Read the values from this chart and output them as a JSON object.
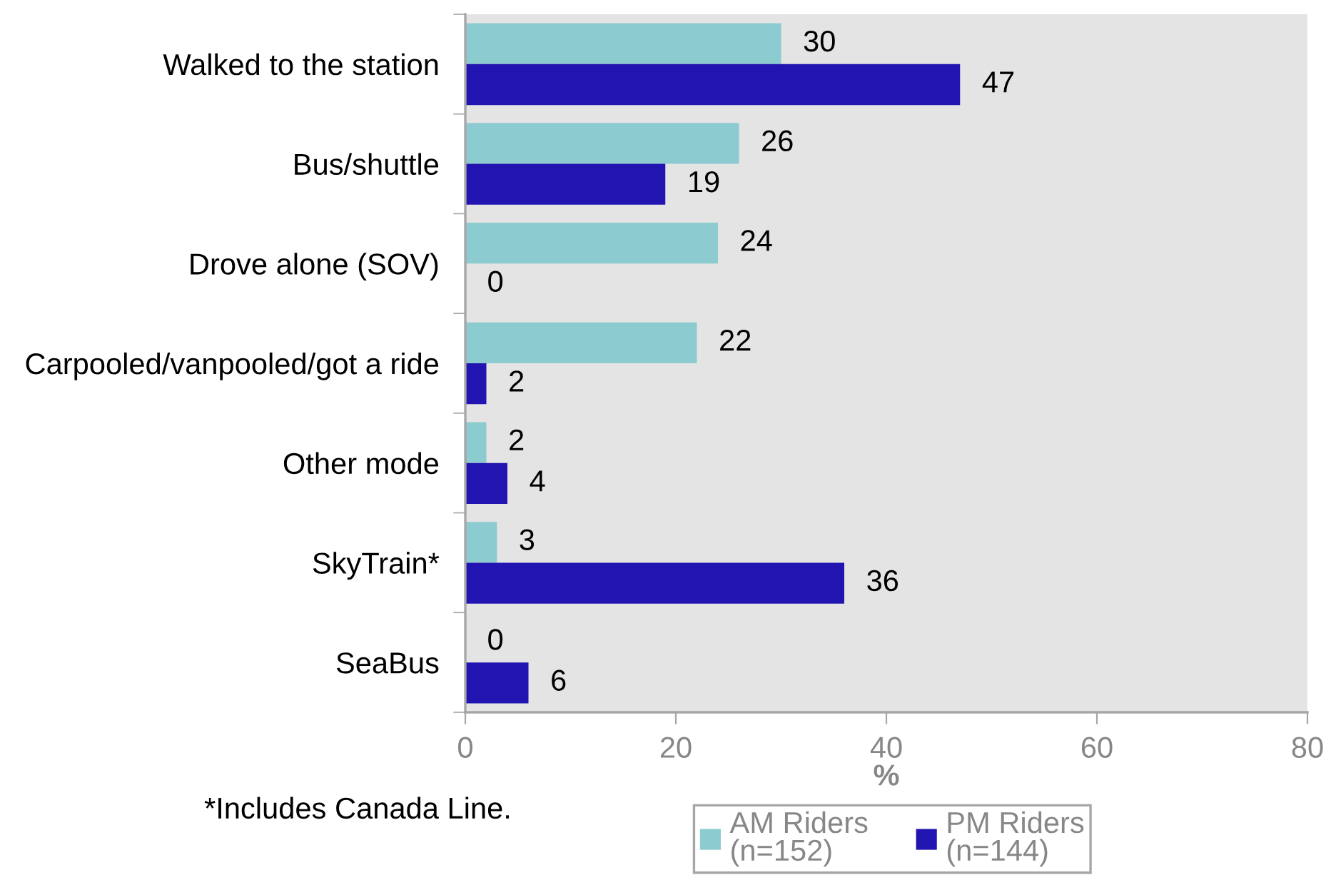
{
  "chart_data": {
    "type": "bar",
    "orientation": "horizontal",
    "categories": [
      "Walked to the station",
      "Bus/shuttle",
      "Drove alone (SOV)",
      "Carpooled/vanpooled/got a ride",
      "Other mode",
      "SkyTrain*",
      "SeaBus"
    ],
    "series": [
      {
        "name": "AM Riders\n(n=152)",
        "color": "#8ccbd0",
        "values": [
          30,
          26,
          24,
          22,
          2,
          3,
          0
        ]
      },
      {
        "name": "PM Riders\n(n=144)",
        "color": "#2114b0",
        "values": [
          47,
          19,
          0,
          2,
          4,
          36,
          6
        ]
      }
    ],
    "xlabel": "%",
    "xlim": [
      0,
      80
    ],
    "xticks": [
      0,
      20,
      40,
      60,
      80
    ],
    "data_labels": true,
    "legend": "bottom",
    "annotations": [
      "*Includes Canada Line."
    ]
  }
}
